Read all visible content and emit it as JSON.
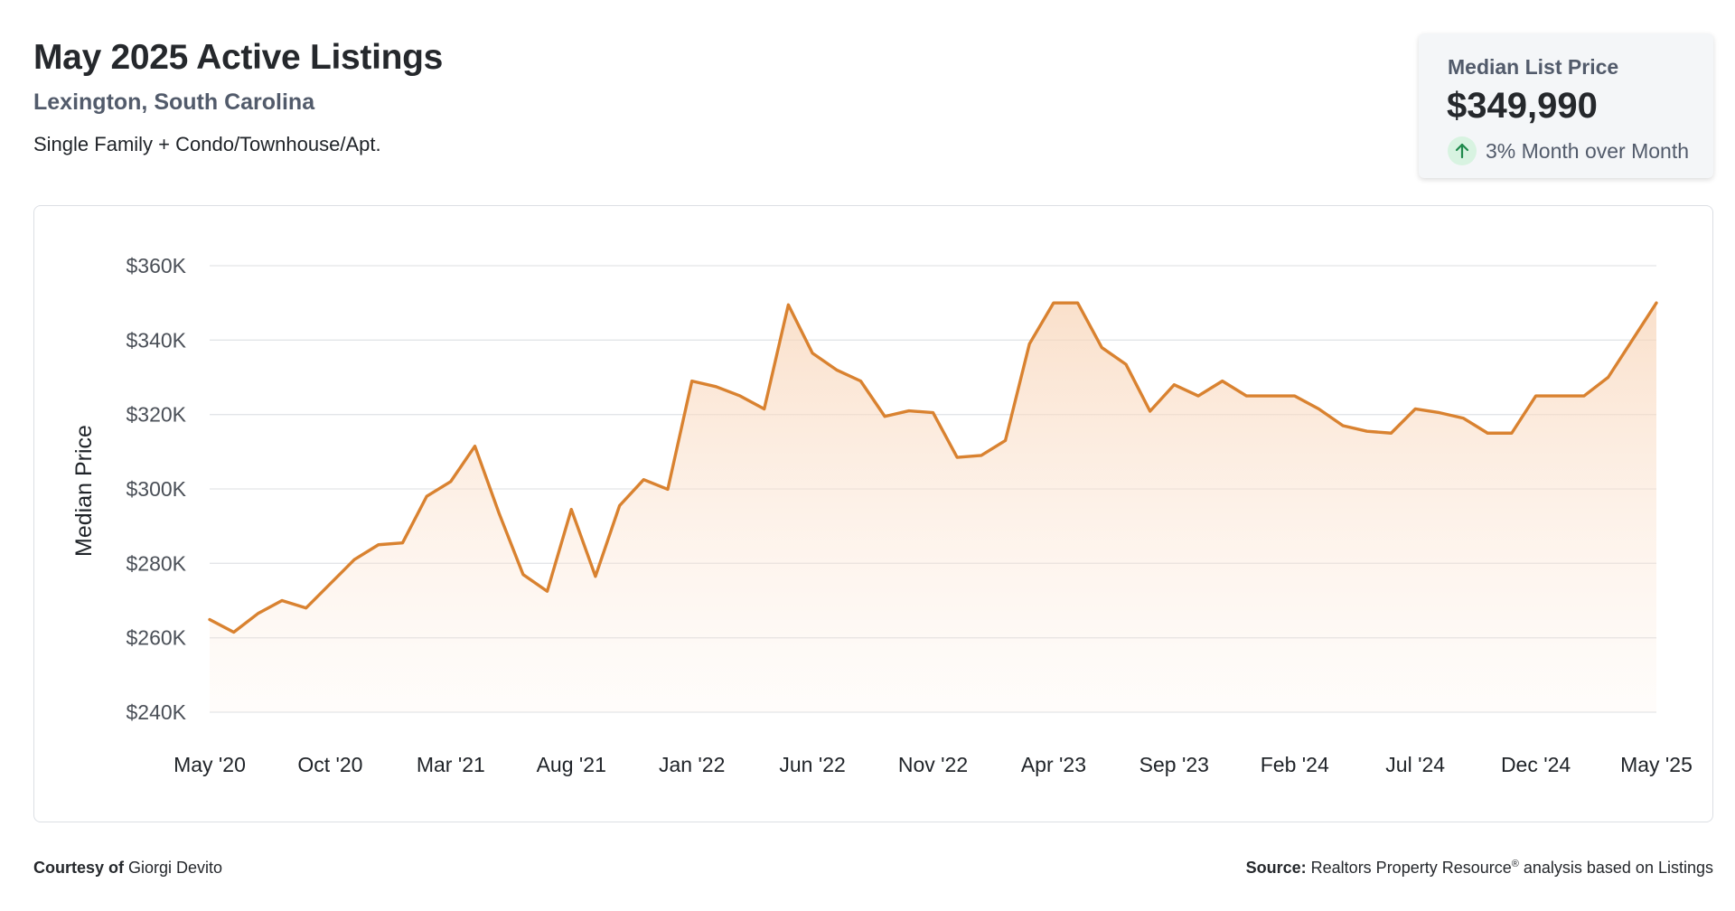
{
  "header": {
    "title": "May 2025 Active Listings",
    "location": "Lexington, South Carolina",
    "property_types": "Single Family + Condo/Townhouse/Apt."
  },
  "kpi": {
    "label": "Median List Price",
    "value": "$349,990",
    "change": "3% Month over Month",
    "icon": "arrow-up-icon"
  },
  "footer": {
    "courtesy_label": "Courtesy of",
    "courtesy_name": "Giorgi Devito",
    "source_label": "Source:",
    "source_text_a": "Realtors Property Resource",
    "source_mark": "®",
    "source_text_b": " analysis based on Listings"
  },
  "colors": {
    "line": "#d98230",
    "fill_top": "#f8d6ba",
    "grid": "#e3e5e8"
  },
  "chart_data": {
    "type": "area",
    "ylabel": "Median Price",
    "xlabel": "",
    "ylim": [
      240000,
      360000
    ],
    "y_ticks": [
      240000,
      260000,
      280000,
      300000,
      320000,
      340000,
      360000
    ],
    "y_tick_labels": [
      "$240K",
      "$260K",
      "$280K",
      "$300K",
      "$320K",
      "$340K",
      "$360K"
    ],
    "x_tick_labels": [
      "May '20",
      "Oct '20",
      "Mar '21",
      "Aug '21",
      "Jan '22",
      "Jun '22",
      "Nov '22",
      "Apr '23",
      "Sep '23",
      "Feb '24",
      "Jul '24",
      "Dec '24",
      "May '25"
    ],
    "x_start": "May '20",
    "x_end": "May '25",
    "grid": true,
    "legend": "none",
    "series": [
      {
        "values": [
          264900,
          261500,
          266500,
          270000,
          268000,
          274500,
          281000,
          285000,
          285500,
          298000,
          302000,
          311500,
          293500,
          277000,
          272500,
          294500,
          276500,
          295500,
          302500,
          299900,
          329000,
          327500,
          325000,
          321500,
          349500,
          336500,
          332000,
          329000,
          319500,
          321000,
          320500,
          308500,
          309000,
          313000,
          339000,
          350000,
          350000,
          338000,
          333500,
          320900,
          328000,
          325000,
          329000,
          325000,
          325000,
          325000,
          321500,
          317000,
          315500,
          315000,
          321500,
          320500,
          319000,
          315000,
          315000,
          325000,
          325000,
          325000,
          330000,
          340000,
          349990
        ]
      }
    ]
  }
}
